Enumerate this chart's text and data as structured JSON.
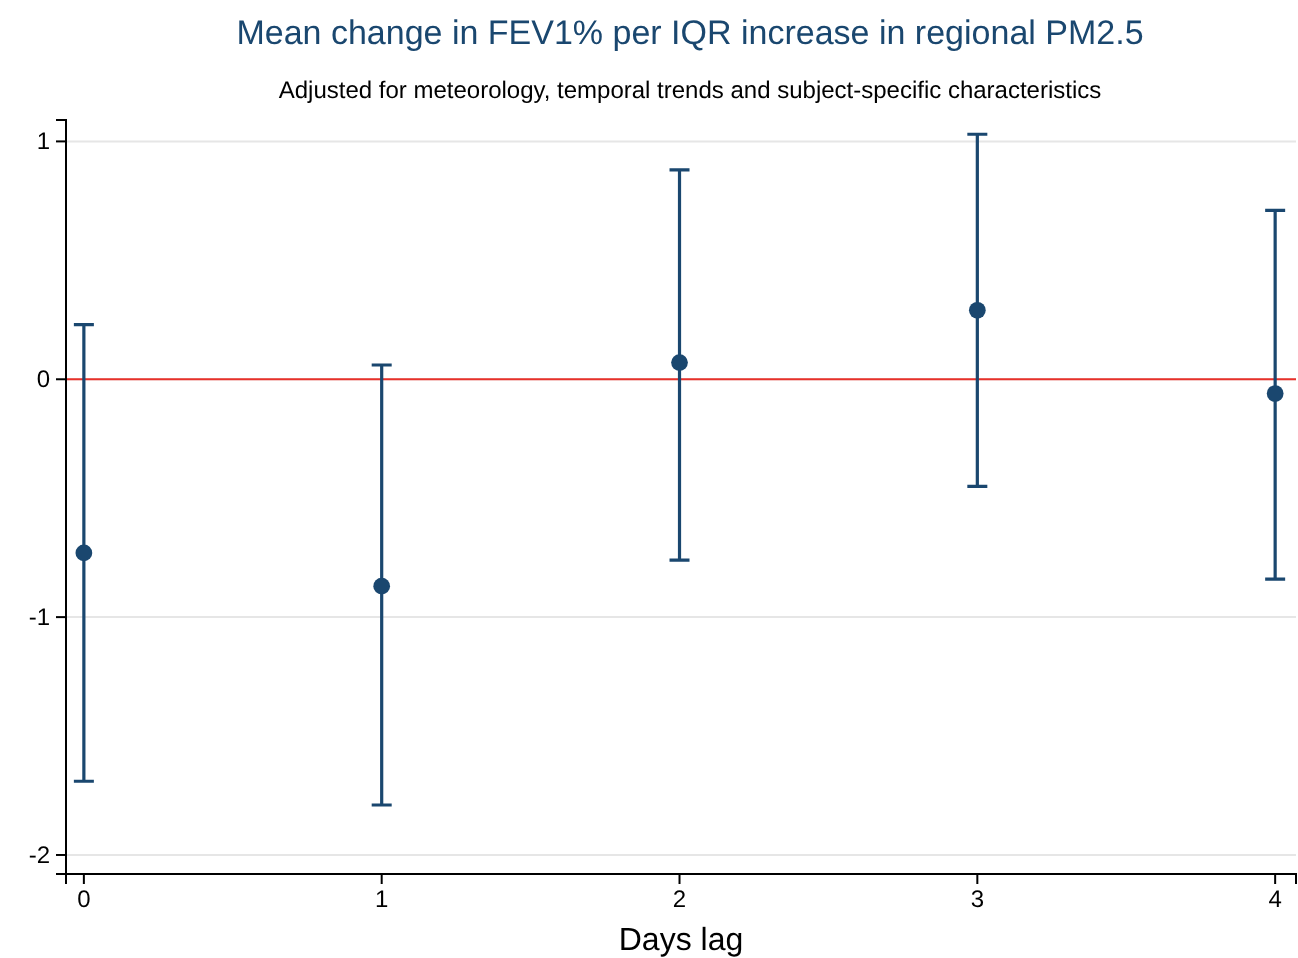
{
  "chart_data": {
    "type": "scatter",
    "title": "Mean change in FEV1% per IQR increase in regional PM2.5",
    "subtitle": "Adjusted for meteorology, temporal trends and subject-specific characteristics",
    "xlabel": "Days lag",
    "x": [
      0,
      1,
      2,
      3,
      4
    ],
    "series": [
      {
        "color": "#1a476f",
        "values": [
          -0.73,
          -0.87,
          0.07,
          0.29,
          -0.06
        ],
        "errors": [
          [
            -1.69,
            0.23
          ],
          [
            -1.79,
            0.06
          ],
          [
            -0.76,
            0.88
          ],
          [
            -0.45,
            1.03
          ],
          [
            -0.84,
            0.71
          ]
        ]
      }
    ],
    "xlim": [
      -0.06,
      4.07
    ],
    "xticks": [
      0,
      1,
      2,
      3,
      4
    ],
    "ylim": [
      -2.08,
      1.09
    ],
    "yticks": [
      -2,
      -1,
      0,
      1
    ],
    "ref_lines": [
      {
        "axis": "y",
        "value": 0,
        "color": "#e8302a"
      }
    ],
    "grid": "y",
    "marker": "circle"
  }
}
